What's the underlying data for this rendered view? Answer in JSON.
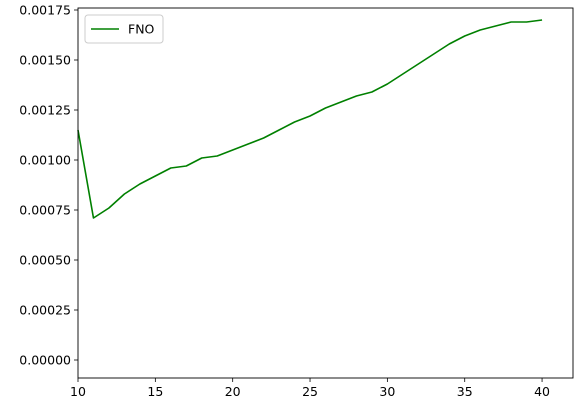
{
  "chart_data": {
    "type": "line",
    "title": "",
    "xlabel": "",
    "ylabel": "",
    "xlim": [
      10,
      42
    ],
    "ylim": [
      -9e-05,
      0.00176
    ],
    "xticks": [
      10,
      15,
      20,
      25,
      30,
      35,
      40
    ],
    "xtick_labels": [
      "10",
      "15",
      "20",
      "25",
      "30",
      "35",
      "40"
    ],
    "yticks": [
      0,
      0.00025,
      0.0005,
      0.00075,
      0.001,
      0.00125,
      0.0015,
      0.00175
    ],
    "ytick_labels": [
      "0.00000",
      "0.00025",
      "0.00050",
      "0.00075",
      "0.00100",
      "0.00125",
      "0.00150",
      "0.00175"
    ],
    "grid": false,
    "legend_position": "upper-left",
    "series": [
      {
        "name": "FNO",
        "color": "#008000",
        "x": [
          10,
          11,
          12,
          13,
          14,
          15,
          16,
          17,
          18,
          19,
          20,
          21,
          22,
          23,
          24,
          25,
          26,
          27,
          28,
          29,
          30,
          31,
          32,
          33,
          34,
          35,
          36,
          37,
          38,
          39,
          40
        ],
        "y": [
          0.00115,
          0.00071,
          0.00076,
          0.00083,
          0.00088,
          0.00092,
          0.00096,
          0.00097,
          0.00101,
          0.00102,
          0.00105,
          0.00108,
          0.00111,
          0.00115,
          0.00119,
          0.00122,
          0.00126,
          0.00129,
          0.00132,
          0.00134,
          0.00138,
          0.00143,
          0.00148,
          0.00153,
          0.00158,
          0.00162,
          0.00165,
          0.00167,
          0.00169,
          0.00169,
          0.0017
        ]
      }
    ]
  }
}
